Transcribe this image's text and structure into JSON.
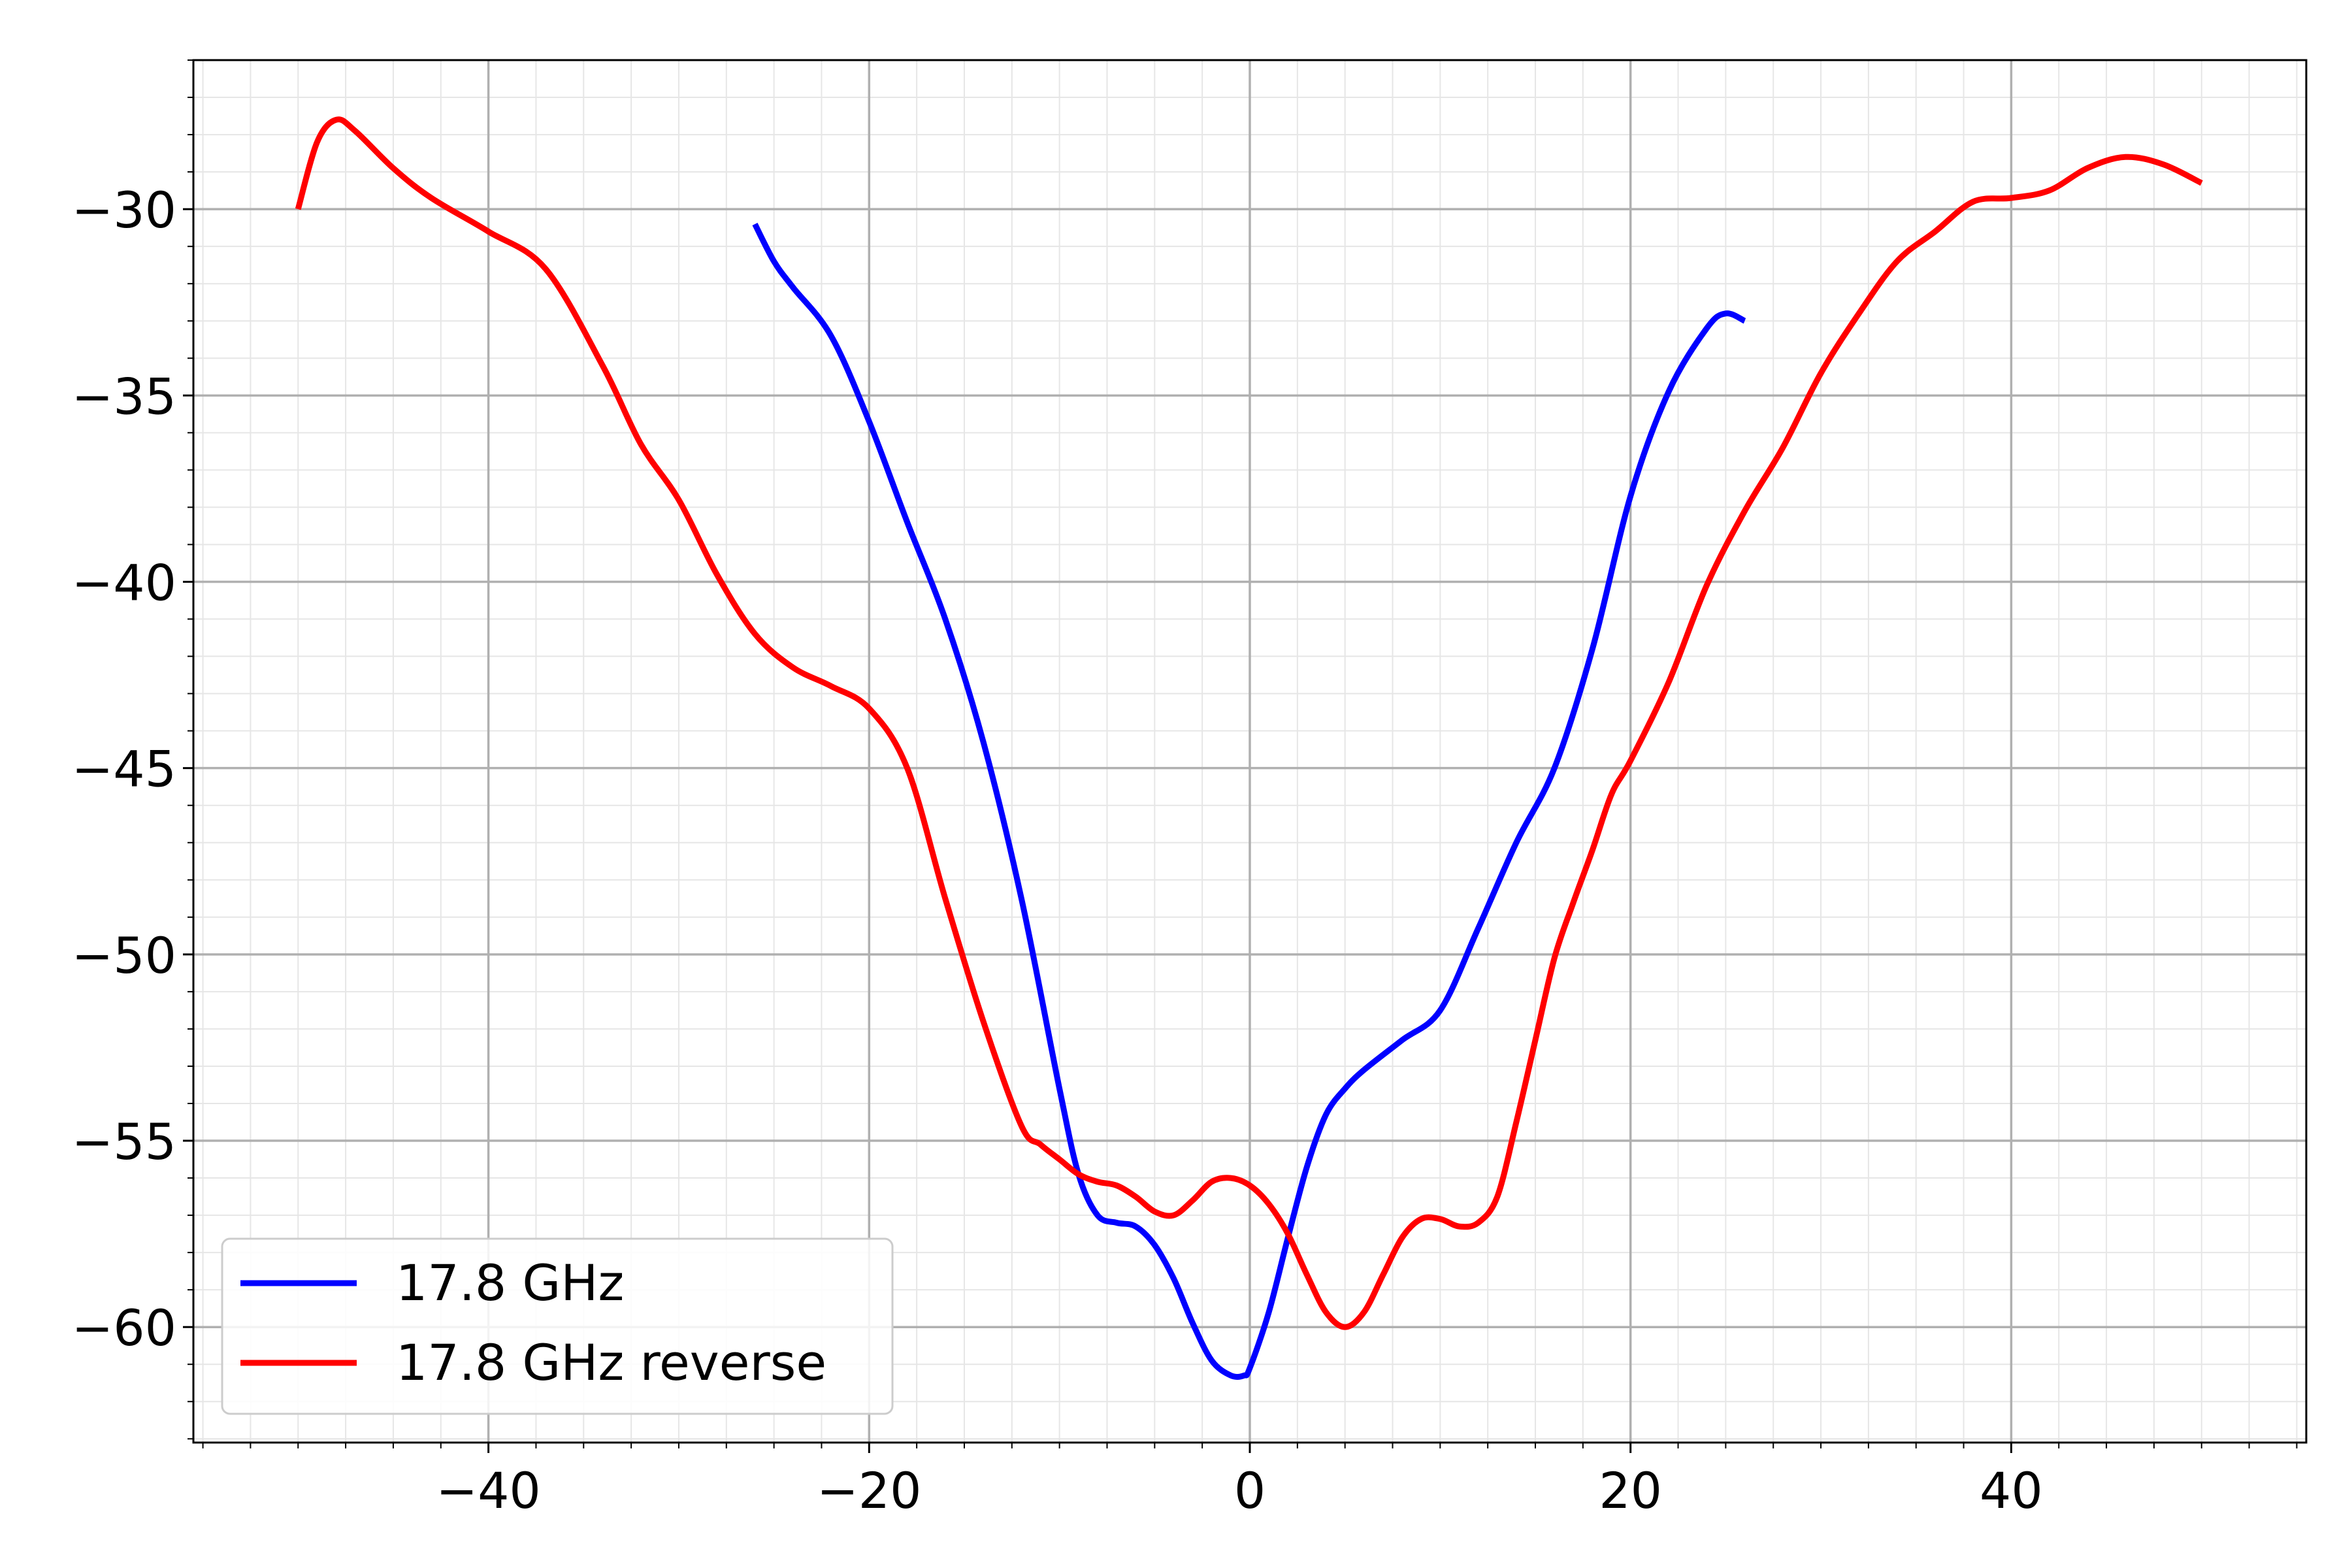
{
  "chart_data": {
    "type": "line",
    "title": "",
    "xlabel": "",
    "ylabel": "",
    "xlim": [
      -55.5,
      55.5
    ],
    "ylim": [
      -63.1,
      -26.0
    ],
    "x_ticks": [
      -40,
      -20,
      0,
      20,
      40
    ],
    "x_tick_labels": [
      "−40",
      "−20",
      "0",
      "20",
      "40"
    ],
    "y_ticks": [
      -30,
      -35,
      -40,
      -45,
      -50,
      -55,
      -60
    ],
    "y_tick_labels": [
      "−30",
      "−35",
      "−40",
      "−45",
      "−50",
      "−55",
      "−60"
    ],
    "grid": {
      "major": true,
      "minor": true
    },
    "legend": {
      "placement": "lower-left"
    },
    "series": [
      {
        "name": "17.8 GHz",
        "color": "#0000ff",
        "x": [
          -26,
          -25,
          -24,
          -22,
          -20,
          -18,
          -16,
          -14,
          -12,
          -10,
          -9,
          -8,
          -7,
          -6,
          -5,
          -4,
          -3,
          -2,
          -1,
          -0.3,
          0,
          1,
          2,
          3,
          4,
          5,
          6,
          8,
          10,
          12,
          14,
          16,
          18,
          20,
          22,
          24,
          25,
          26
        ],
        "y": [
          -30.4,
          -31.4,
          -32.1,
          -33.4,
          -35.7,
          -38.4,
          -41.0,
          -44.3,
          -48.5,
          -53.6,
          -55.9,
          -57.0,
          -57.2,
          -57.3,
          -57.8,
          -58.7,
          -59.9,
          -60.9,
          -61.3,
          -61.3,
          -61.1,
          -59.6,
          -57.6,
          -55.7,
          -54.3,
          -53.6,
          -53.1,
          -52.3,
          -51.5,
          -49.3,
          -47.0,
          -45.0,
          -41.8,
          -37.7,
          -34.9,
          -33.2,
          -32.8,
          -33.0
        ]
      },
      {
        "name": "17.8 GHz reverse",
        "color": "#ff0000",
        "x": [
          -50,
          -49,
          -48,
          -47,
          -45,
          -43,
          -40,
          -37,
          -34,
          -32,
          -30,
          -28,
          -26,
          -24,
          -22,
          -20,
          -18,
          -16,
          -14,
          -12,
          -11,
          -10,
          -9,
          -8,
          -7,
          -6,
          -5,
          -4,
          -3,
          -2,
          -1,
          0,
          1,
          2,
          3,
          4,
          5,
          6,
          7,
          8,
          9,
          10,
          11,
          12,
          13,
          14,
          15,
          16,
          17,
          18,
          19,
          20,
          22,
          24,
          26,
          28,
          30,
          32,
          34,
          36,
          38,
          40,
          42,
          44,
          46,
          48,
          50
        ],
        "y": [
          -30.0,
          -28.2,
          -27.6,
          -27.9,
          -28.9,
          -29.7,
          -30.6,
          -31.6,
          -34.2,
          -36.3,
          -37.8,
          -39.8,
          -41.4,
          -42.3,
          -42.8,
          -43.4,
          -45.0,
          -48.5,
          -51.8,
          -54.6,
          -55.1,
          -55.5,
          -55.9,
          -56.1,
          -56.2,
          -56.5,
          -56.9,
          -57.0,
          -56.6,
          -56.1,
          -56.0,
          -56.2,
          -56.7,
          -57.5,
          -58.6,
          -59.6,
          -60.0,
          -59.6,
          -58.6,
          -57.6,
          -57.1,
          -57.1,
          -57.3,
          -57.2,
          -56.5,
          -54.5,
          -52.3,
          -50.1,
          -48.6,
          -47.2,
          -45.7,
          -44.8,
          -42.7,
          -40.1,
          -38.1,
          -36.4,
          -34.4,
          -32.8,
          -31.4,
          -30.6,
          -29.8,
          -29.7,
          -29.5,
          -28.9,
          -28.6,
          -28.8,
          -29.3
        ]
      }
    ]
  }
}
